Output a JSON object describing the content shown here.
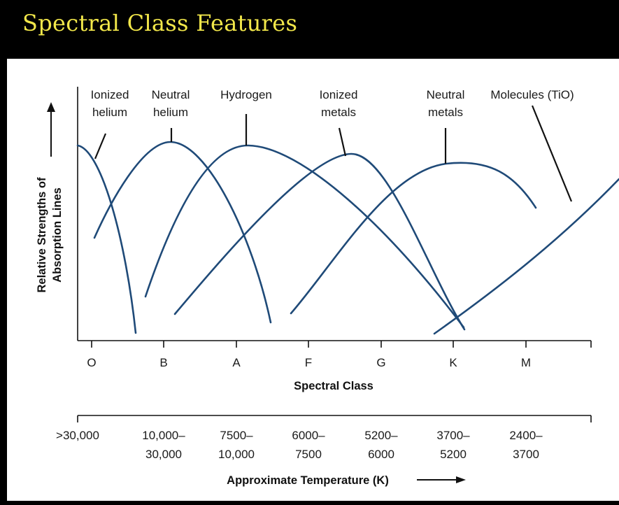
{
  "title": "Spectral Class Features",
  "y_axis": {
    "line1": "Relative Strengths of",
    "line2": "Absorption Lines"
  },
  "x_axis_label": "Spectral Class",
  "temp_axis_label": "Approximate Temperature (K)",
  "spectral_classes": [
    "O",
    "B",
    "A",
    "F",
    "G",
    "K",
    "M"
  ],
  "temperatures": [
    {
      "line1": ">30,000",
      "line2": ""
    },
    {
      "line1": "10,000–",
      "line2": "30,000"
    },
    {
      "line1": "7500–",
      "line2": "10,000"
    },
    {
      "line1": "6000–",
      "line2": "7500"
    },
    {
      "line1": "5200–",
      "line2": "6000"
    },
    {
      "line1": "3700–",
      "line2": "5200"
    },
    {
      "line1": "2400–",
      "line2": "3700"
    }
  ],
  "curves": [
    {
      "line1": "Ionized",
      "line2": "helium"
    },
    {
      "line1": "Neutral",
      "line2": "helium"
    },
    {
      "line1": "Hydrogen",
      "line2": ""
    },
    {
      "line1": "Ionized",
      "line2": "metals"
    },
    {
      "line1": "Neutral",
      "line2": "metals"
    },
    {
      "line1": "Molecules (TiO)",
      "line2": ""
    }
  ],
  "colors": {
    "background": "#000000",
    "title": "#f2e74a",
    "panel": "#ffffff",
    "curve": "#1f4a78"
  }
}
